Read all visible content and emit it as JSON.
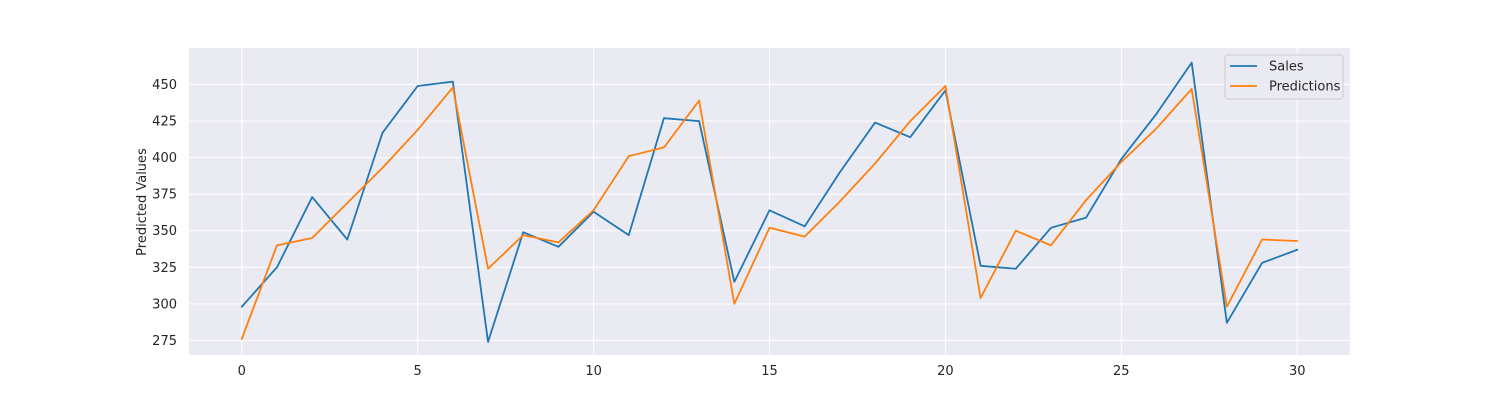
{
  "chart_data": {
    "type": "line",
    "title": "",
    "xlabel": "",
    "ylabel": "Predicted Values",
    "xlim": [
      -1.5,
      31.5
    ],
    "ylim": [
      265,
      475
    ],
    "x_ticks": [
      0,
      5,
      10,
      15,
      20,
      25,
      30
    ],
    "y_ticks": [
      275,
      300,
      325,
      350,
      375,
      400,
      425,
      450
    ],
    "grid": true,
    "legend_position": "top-right",
    "x": [
      0,
      1,
      2,
      3,
      4,
      5,
      6,
      7,
      8,
      9,
      10,
      11,
      12,
      13,
      14,
      15,
      16,
      17,
      18,
      19,
      20,
      21,
      22,
      23,
      24,
      25,
      26,
      27,
      28,
      29,
      30
    ],
    "series": [
      {
        "name": "Sales",
        "color": "#1f77b4",
        "values": [
          298,
          325,
          373,
          344,
          417,
          449,
          452,
          274,
          349,
          339,
          363,
          347,
          427,
          425,
          315,
          364,
          353,
          390,
          424,
          414,
          446,
          326,
          324,
          352,
          359,
          399,
          430,
          465,
          287,
          328,
          337
        ]
      },
      {
        "name": "Predictions",
        "color": "#ff7f0e",
        "values": [
          276,
          340,
          345,
          369,
          393,
          419,
          448,
          324,
          347,
          342,
          364,
          401,
          407,
          439,
          300,
          352,
          346,
          370,
          396,
          425,
          449,
          304,
          350,
          340,
          371,
          397,
          420,
          447,
          298,
          344,
          343
        ]
      }
    ]
  }
}
